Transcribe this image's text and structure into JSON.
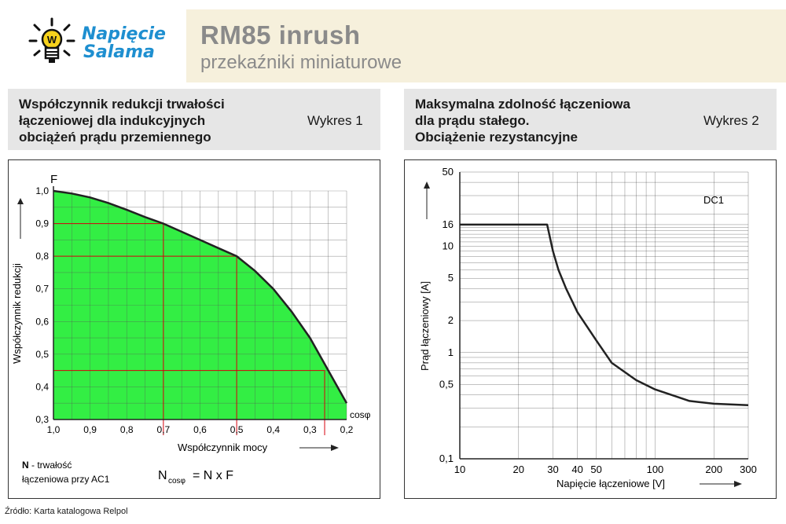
{
  "header": {
    "logo_line1": "Napięcie",
    "logo_line2": "Salama",
    "product_title": "RM85 inrush",
    "product_subtitle": "przekaźniki miniaturowe"
  },
  "captions": [
    {
      "title_lines": [
        "Współczynnik redukcji trwałości",
        "łączeniowej dla indukcyjnych",
        "obciążeń prądu przemiennego"
      ],
      "ref": "Wykres 1"
    },
    {
      "title_lines": [
        "Maksymalna zdolność łączeniowa",
        "dla prądu stałego.",
        "Obciążenie rezystancyjne"
      ],
      "ref": "Wykres 2"
    }
  ],
  "source": "Źródło: Karta katalogowa Relpol",
  "colors": {
    "fill": "#33ee44",
    "ref_lines": "#d8000c",
    "curve": "#222222",
    "grid": "#b3b3b3"
  },
  "chart_data": [
    {
      "type": "area",
      "ylabel": "Współczynnik redukcji",
      "xlabel": "Współczynnik mocy",
      "y_symbol": "F",
      "x_symbol": "cosφ",
      "x_reversed": true,
      "xlim": [
        1.0,
        0.2
      ],
      "ylim": [
        0.3,
        1.0
      ],
      "x_ticks": [
        "1,0",
        "0,9",
        "0,8",
        "0,7",
        "0,6",
        "0,5",
        "0,4",
        "0,3",
        "0,2"
      ],
      "y_ticks": [
        "0,3",
        "0,4",
        "0,5",
        "0,6",
        "0,7",
        "0,8",
        "0,9",
        "1,0"
      ],
      "x": [
        1.0,
        0.95,
        0.9,
        0.85,
        0.8,
        0.75,
        0.7,
        0.65,
        0.6,
        0.55,
        0.5,
        0.45,
        0.4,
        0.35,
        0.3,
        0.25,
        0.2
      ],
      "y": [
        1.0,
        0.992,
        0.98,
        0.963,
        0.942,
        0.92,
        0.9,
        0.875,
        0.85,
        0.825,
        0.8,
        0.755,
        0.7,
        0.63,
        0.55,
        0.45,
        0.35
      ],
      "reference_points": [
        {
          "x": 0.7,
          "y": 0.9
        },
        {
          "x": 0.5,
          "y": 0.8
        },
        {
          "x": 0.26,
          "y": 0.45
        }
      ],
      "grid": true,
      "legend_symbol": "N",
      "legend_text": "- trwałość",
      "legend_text2": "łączeniowa przy AC1",
      "formula_lhs": "N",
      "formula_sub": "cosφ",
      "formula_rhs": "= N x F"
    },
    {
      "type": "line",
      "series_label": "DC1",
      "ylabel": "Prąd łączeniowy [A]",
      "xlabel": "Napięcie łączeniowe [V]",
      "x_scale": "log",
      "y_scale": "log",
      "xlim": [
        10,
        300
      ],
      "ylim": [
        0.1,
        50
      ],
      "x_ticks": [
        10,
        20,
        30,
        40,
        50,
        100,
        200,
        300
      ],
      "y_ticks": [
        0.1,
        0.5,
        1,
        2,
        5,
        10,
        16,
        50
      ],
      "x_tick_labels": [
        "10",
        "20",
        "30",
        "40",
        "50",
        "100",
        "200",
        "300"
      ],
      "y_tick_labels": [
        "0,1",
        "0,5",
        "1",
        "2",
        "5",
        "10",
        "16",
        "50"
      ],
      "x": [
        10,
        28,
        30,
        32,
        35,
        40,
        50,
        60,
        80,
        100,
        150,
        200,
        300
      ],
      "y": [
        16,
        16,
        9,
        6,
        4,
        2.4,
        1.3,
        0.8,
        0.55,
        0.45,
        0.35,
        0.33,
        0.32
      ],
      "grid": true
    }
  ]
}
